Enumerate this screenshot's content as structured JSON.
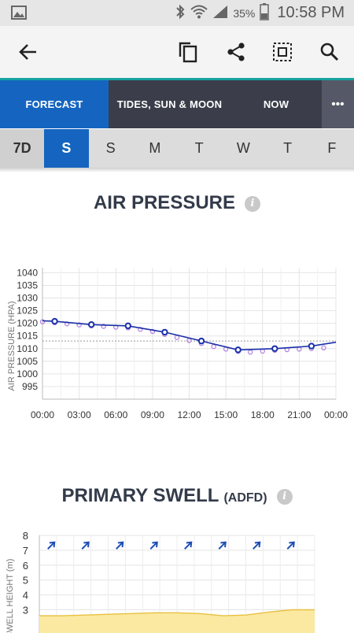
{
  "status": {
    "battery": "35%",
    "time": "10:58 PM"
  },
  "tabs": [
    {
      "label": "FORECAST",
      "active": true
    },
    {
      "label": "TIDES, SUN & MOON",
      "active": false
    },
    {
      "label": "NOW",
      "active": false
    },
    {
      "label": "•••",
      "active": false
    }
  ],
  "days": [
    "7D",
    "S",
    "S",
    "M",
    "T",
    "W",
    "T",
    "F"
  ],
  "active_day": 1,
  "pressure": {
    "title": "AIR PRESSURE",
    "info": "i"
  },
  "swell": {
    "title": "PRIMARY SWELL",
    "subtitle": "(ADFD)",
    "info": "i"
  },
  "chart_data": [
    {
      "type": "line",
      "ylabel": "AIR PRESSURE (HPA)",
      "yticks": [
        "1040",
        "1035",
        "1030",
        "1025",
        "1020",
        "1015",
        "1010",
        "1005",
        "1000",
        "995"
      ],
      "xticks": [
        "00:00",
        "03:00",
        "06:00",
        "09:00",
        "12:00",
        "15:00",
        "18:00",
        "21:00",
        "00:00"
      ],
      "ylim": [
        990,
        1042
      ],
      "xlim": [
        0,
        24
      ],
      "reference_line": 1013,
      "series": [
        {
          "x": [
            0,
            1,
            4,
            7,
            10,
            13,
            16,
            19,
            22,
            24
          ],
          "y": [
            1021,
            1020.8,
            1019.5,
            1019,
            1016.5,
            1013,
            1009.5,
            1010,
            1011,
            1012.5
          ]
        },
        {
          "x": [
            0,
            1,
            2,
            3,
            4,
            5,
            6,
            7,
            8,
            9,
            10,
            11,
            12,
            13,
            14,
            15,
            16,
            17,
            18,
            19,
            20,
            21,
            22,
            23
          ],
          "y": [
            1020.6,
            1020.2,
            1019.8,
            1019.4,
            1019,
            1018.8,
            1018.5,
            1018.2,
            1017.6,
            1016.8,
            1015.6,
            1014.4,
            1013.2,
            1012,
            1010.8,
            1009.8,
            1008.9,
            1008.6,
            1009,
            1009.3,
            1009.6,
            1009.8,
            1010,
            1010.3
          ]
        }
      ],
      "markers_x": [
        1,
        4,
        7,
        10,
        13,
        16,
        19,
        22
      ]
    },
    {
      "type": "area",
      "ylabel": "SWELL HEIGHT (m)",
      "yticks": [
        "8",
        "7",
        "6",
        "5",
        "4",
        "3"
      ],
      "ylim": [
        2.5,
        8
      ],
      "direction_arrows": 8,
      "x": [
        0,
        2,
        4,
        6,
        8,
        10,
        12,
        14,
        16,
        18,
        20,
        22,
        24
      ],
      "values": [
        2.6,
        2.6,
        2.65,
        2.7,
        2.75,
        2.8,
        2.8,
        2.75,
        2.6,
        2.65,
        2.85,
        3.0,
        3.0
      ]
    }
  ]
}
